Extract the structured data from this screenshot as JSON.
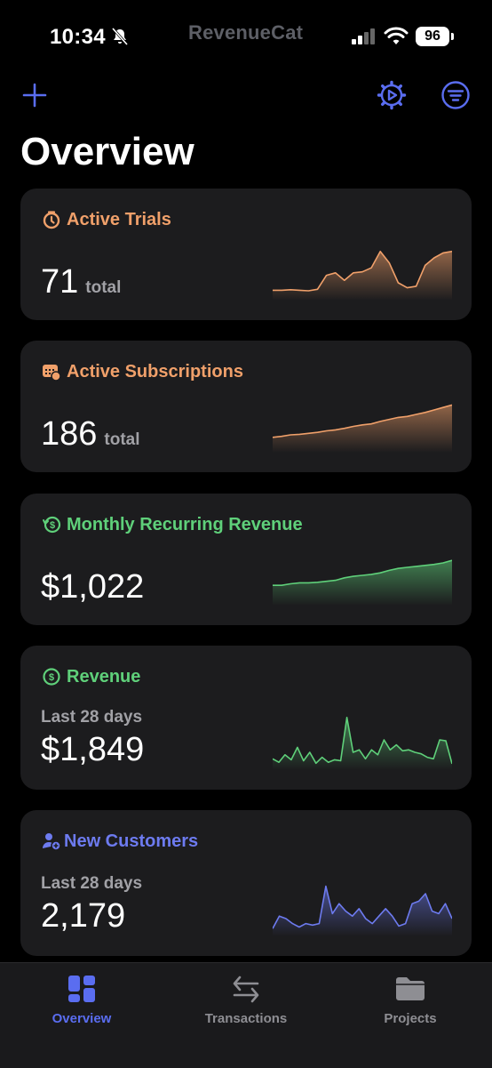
{
  "status": {
    "time": "10:34",
    "brand": "RevenueCat",
    "battery": "96"
  },
  "page": {
    "title": "Overview"
  },
  "colors": {
    "accent": "#5a6df0",
    "orange": "#f0a06a",
    "green": "#5fd07a",
    "blue": "#6d7bf0",
    "card": "#1c1c1e"
  },
  "cards": [
    {
      "title": "Active Trials",
      "icon": "timer-icon",
      "value": "71",
      "unit": "total",
      "subtitle": "",
      "color": "#f0a06a",
      "chart_data": {
        "type": "area",
        "values": [
          0.1,
          0.1,
          0.11,
          0.1,
          0.09,
          0.12,
          0.4,
          0.45,
          0.3,
          0.45,
          0.47,
          0.55,
          0.88,
          0.65,
          0.25,
          0.15,
          0.18,
          0.6,
          0.75,
          0.85,
          0.88
        ]
      }
    },
    {
      "title": "Active Subscriptions",
      "icon": "calendar-icon",
      "value": "186",
      "unit": "total",
      "subtitle": "",
      "color": "#f0a06a",
      "chart_data": {
        "type": "area",
        "values": [
          0.2,
          0.22,
          0.25,
          0.26,
          0.28,
          0.3,
          0.33,
          0.35,
          0.38,
          0.42,
          0.45,
          0.47,
          0.52,
          0.56,
          0.6,
          0.62,
          0.66,
          0.7,
          0.75,
          0.8,
          0.85
        ]
      }
    },
    {
      "title": "Monthly Recurring Revenue",
      "icon": "recurring-dollar-icon",
      "value": "$1,022",
      "unit": "",
      "subtitle": "",
      "color": "#5fd07a",
      "chart_data": {
        "type": "area",
        "values": [
          0.3,
          0.3,
          0.33,
          0.35,
          0.35,
          0.36,
          0.38,
          0.4,
          0.45,
          0.48,
          0.5,
          0.52,
          0.55,
          0.6,
          0.64,
          0.66,
          0.68,
          0.7,
          0.72,
          0.75,
          0.8
        ]
      }
    },
    {
      "title": "Revenue",
      "icon": "dollar-circle-icon",
      "value": "$1,849",
      "unit": "",
      "subtitle": "Last 28 days",
      "color": "#5fd07a",
      "chart_data": {
        "type": "area",
        "values": [
          0.12,
          0.05,
          0.2,
          0.1,
          0.35,
          0.08,
          0.25,
          0.03,
          0.15,
          0.05,
          0.1,
          0.08,
          0.95,
          0.25,
          0.3,
          0.12,
          0.3,
          0.2,
          0.5,
          0.3,
          0.4,
          0.28,
          0.3,
          0.25,
          0.22,
          0.15,
          0.12,
          0.5,
          0.48,
          0.02
        ]
      }
    },
    {
      "title": "New Customers",
      "icon": "add-user-icon",
      "value": "2,179",
      "unit": "",
      "subtitle": "Last 28 days",
      "color": "#6d7bf0",
      "chart_data": {
        "type": "area",
        "values": [
          0.05,
          0.3,
          0.25,
          0.15,
          0.08,
          0.15,
          0.12,
          0.15,
          0.9,
          0.35,
          0.55,
          0.4,
          0.3,
          0.45,
          0.25,
          0.15,
          0.3,
          0.45,
          0.3,
          0.1,
          0.15,
          0.55,
          0.6,
          0.75,
          0.4,
          0.35,
          0.55,
          0.25
        ]
      }
    }
  ],
  "tabs": [
    {
      "label": "Overview",
      "icon": "dashboard-icon",
      "active": true
    },
    {
      "label": "Transactions",
      "icon": "arrows-exchange-icon",
      "active": false
    },
    {
      "label": "Projects",
      "icon": "folder-icon",
      "active": false
    }
  ]
}
